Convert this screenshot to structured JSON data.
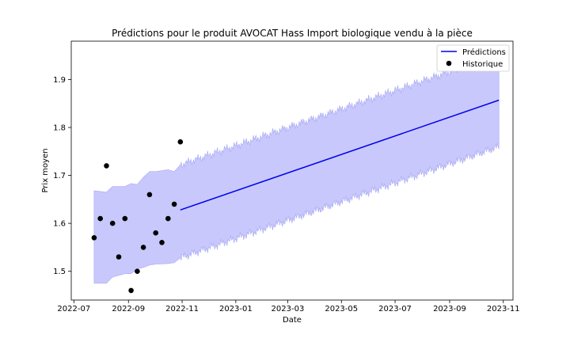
{
  "chart_data": {
    "type": "line",
    "title": "Prédictions pour le produit AVOCAT Hass Import biologique vendu à la pièce",
    "xlabel": "Date",
    "ylabel": "Prix moyen",
    "xlim": [
      "2022-06-28",
      "2023-11-12"
    ],
    "ylim": [
      1.44,
      1.98
    ],
    "x_ticks": [
      "2022-07-01",
      "2022-09-01",
      "2022-11-01",
      "2023-01-01",
      "2023-03-01",
      "2023-05-01",
      "2023-07-01",
      "2023-09-01",
      "2023-11-01"
    ],
    "x_tick_labels": [
      "2022-07",
      "2022-09",
      "2022-11",
      "2023-01",
      "2023-03",
      "2023-05",
      "2023-07",
      "2023-09",
      "2023-11"
    ],
    "y_ticks": [
      1.5,
      1.6,
      1.7,
      1.8,
      1.9
    ],
    "y_tick_labels": [
      "1.5",
      "1.6",
      "1.7",
      "1.8",
      "1.9"
    ],
    "legend_position": "top-right",
    "grid": false,
    "colors": {
      "prediction": "#0000ee",
      "interval": "#c8c8fc",
      "interval_edge": "#a8a8f4",
      "history": "#000000"
    },
    "series": [
      {
        "name": "Prédictions",
        "type": "line",
        "x": [
          "2022-10-30",
          "2023-10-27"
        ],
        "y": [
          1.628,
          1.857
        ]
      },
      {
        "name": "Historique",
        "type": "scatter",
        "x": [
          "2022-07-24",
          "2022-07-31",
          "2022-08-07",
          "2022-08-14",
          "2022-08-21",
          "2022-08-28",
          "2022-09-04",
          "2022-09-11",
          "2022-09-18",
          "2022-09-25",
          "2022-10-02",
          "2022-10-09",
          "2022-10-16",
          "2022-10-23",
          "2022-10-30"
        ],
        "y": [
          1.57,
          1.61,
          1.72,
          1.6,
          1.53,
          1.61,
          1.46,
          1.5,
          1.55,
          1.66,
          1.58,
          1.56,
          1.61,
          1.64,
          1.77
        ]
      }
    ],
    "interval": {
      "upper": {
        "x": [
          "2022-07-24",
          "2022-08-07",
          "2022-08-14",
          "2022-08-28",
          "2022-09-04",
          "2022-09-11",
          "2022-09-18",
          "2022-09-25",
          "2022-10-02",
          "2022-10-16",
          "2022-10-23",
          "2022-10-30",
          "2023-10-27"
        ],
        "y": [
          1.668,
          1.665,
          1.677,
          1.677,
          1.683,
          1.681,
          1.696,
          1.708,
          1.708,
          1.712,
          1.708,
          1.722,
          1.952
        ]
      },
      "lower": {
        "x": [
          "2022-07-24",
          "2022-08-07",
          "2022-08-14",
          "2022-08-28",
          "2022-09-04",
          "2022-09-11",
          "2022-09-18",
          "2022-09-25",
          "2022-10-02",
          "2022-10-16",
          "2022-10-23",
          "2022-10-30",
          "2023-10-27"
        ],
        "y": [
          1.475,
          1.475,
          1.488,
          1.495,
          1.495,
          1.505,
          1.508,
          1.513,
          1.515,
          1.516,
          1.518,
          1.528,
          1.76
        ]
      }
    }
  }
}
